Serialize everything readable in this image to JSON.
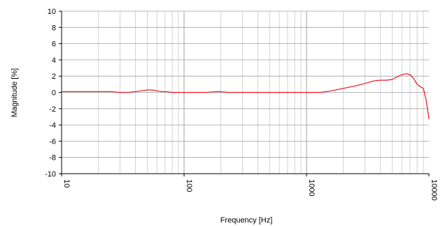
{
  "chart_data": {
    "type": "line",
    "xlabel": "Frequency [Hz]",
    "ylabel": "Magnitude [%]",
    "xscale": "log",
    "xlim": [
      10,
      10000
    ],
    "ylim": [
      -10,
      10
    ],
    "grid": true,
    "legend": "none",
    "x_tick_labels": [
      "10",
      "100",
      "1000",
      "10000"
    ],
    "y_tick_labels": [
      "10",
      "8",
      "6",
      "4",
      "2",
      "0",
      "-2",
      "-4",
      "-6",
      "-8",
      "-10"
    ],
    "colors": {
      "line": "#e8141c",
      "major_grid": "#a0a0a0",
      "minor_grid": "#c8c8c8",
      "axis": "#000000"
    },
    "series": [
      {
        "x": [
          10,
          15,
          20,
          25,
          30,
          35,
          40,
          45,
          50,
          55,
          60,
          65,
          70,
          80,
          100,
          150,
          190,
          230,
          300,
          500,
          800,
          1000,
          1300,
          1600,
          2000,
          2500,
          3000,
          3500,
          4000,
          4500,
          5000,
          5500,
          6000,
          6500,
          7000,
          7500,
          8000,
          8500,
          9000,
          9500,
          10000
        ],
        "y": [
          0.1,
          0.1,
          0.1,
          0.1,
          0.0,
          0.0,
          0.1,
          0.2,
          0.3,
          0.3,
          0.2,
          0.1,
          0.1,
          0.0,
          0.0,
          0.0,
          0.1,
          0.0,
          0.0,
          0.0,
          0.0,
          0.0,
          0.0,
          0.2,
          0.5,
          0.8,
          1.1,
          1.4,
          1.5,
          1.5,
          1.6,
          1.9,
          2.2,
          2.3,
          2.2,
          1.7,
          1.0,
          0.7,
          0.5,
          -1.0,
          -3.3
        ]
      }
    ]
  }
}
